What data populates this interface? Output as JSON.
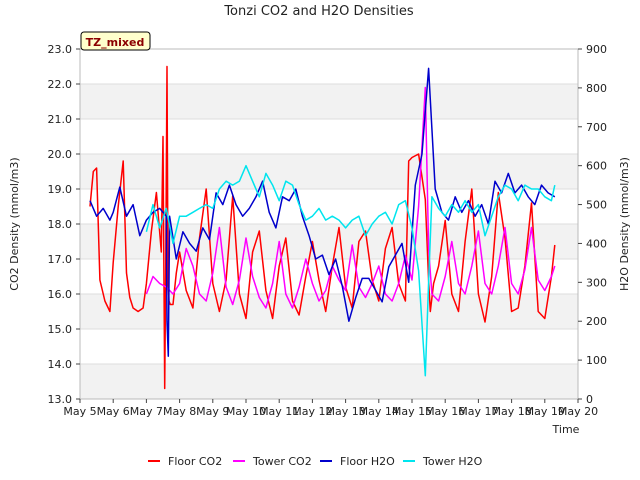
{
  "chart_data": {
    "type": "line",
    "title": "Tonzi CO2 and H2O Densities",
    "site_label": "TZ_mixed",
    "xlabel": "Time",
    "ylabel_left": "CO2 Density (mmol/m3)",
    "ylabel_right": "H2O Density (mmol/m3)",
    "x_ticks": [
      "May 5",
      "May 6",
      "May 7",
      "May 8",
      "May 9",
      "May 10",
      "May 11",
      "May 12",
      "May 13",
      "May 14",
      "May 15",
      "May 16",
      "May 17",
      "May 18",
      "May 19",
      "May 20"
    ],
    "xlim": [
      5,
      20
    ],
    "ylim_left": [
      13.0,
      23.0
    ],
    "ylim_right": [
      0,
      900
    ],
    "y_ticks_left": [
      "13.0",
      "14.0",
      "15.0",
      "16.0",
      "17.0",
      "18.0",
      "19.0",
      "20.0",
      "21.0",
      "22.0",
      "23.0"
    ],
    "y_ticks_right": [
      "0",
      "100",
      "200",
      "300",
      "400",
      "500",
      "600",
      "700",
      "800",
      "900"
    ],
    "background_bands": "alternating gray",
    "legend_position": "bottom",
    "series": [
      {
        "name": "Floor CO2",
        "axis": "left",
        "color": "#ff0000",
        "x": [
          5.3,
          5.4,
          5.5,
          5.6,
          5.75,
          5.9,
          6.0,
          6.15,
          6.3,
          6.4,
          6.5,
          6.6,
          6.75,
          6.9,
          7.0,
          7.15,
          7.3,
          7.45,
          7.5,
          7.55,
          7.58,
          7.62,
          7.65,
          7.68,
          7.72,
          7.8,
          7.9,
          8.0,
          8.2,
          8.4,
          8.6,
          8.8,
          9.0,
          9.2,
          9.4,
          9.6,
          9.8,
          10.0,
          10.2,
          10.4,
          10.6,
          10.8,
          11.0,
          11.2,
          11.4,
          11.6,
          11.8,
          12.0,
          12.2,
          12.4,
          12.6,
          12.8,
          13.0,
          13.2,
          13.4,
          13.6,
          13.8,
          14.0,
          14.2,
          14.4,
          14.6,
          14.8,
          14.9,
          15.0,
          15.2,
          15.4,
          15.5,
          15.55,
          15.65,
          15.8,
          16.0,
          16.2,
          16.4,
          16.6,
          16.8,
          17.0,
          17.2,
          17.4,
          17.6,
          17.8,
          18.0,
          18.2,
          18.4,
          18.6,
          18.8,
          19.0,
          19.2,
          19.3
        ],
        "y": [
          18.5,
          19.5,
          19.6,
          16.4,
          15.8,
          15.5,
          16.9,
          18.5,
          19.8,
          16.6,
          15.9,
          15.6,
          15.5,
          15.6,
          16.3,
          17.8,
          18.9,
          17.2,
          20.5,
          13.3,
          16.6,
          22.5,
          16.4,
          15.8,
          15.7,
          15.7,
          16.6,
          17.2,
          16.1,
          15.6,
          17.6,
          19.0,
          16.3,
          15.5,
          16.4,
          18.8,
          16.0,
          15.3,
          17.2,
          17.8,
          16.1,
          15.3,
          16.8,
          17.6,
          15.8,
          15.4,
          16.5,
          17.5,
          16.4,
          15.5,
          16.8,
          17.9,
          16.2,
          15.6,
          17.5,
          17.8,
          16.4,
          15.8,
          17.3,
          17.9,
          16.3,
          15.8,
          19.8,
          19.9,
          20.0,
          18.7,
          16.4,
          15.5,
          16.3,
          16.8,
          18.1,
          16.0,
          15.5,
          17.5,
          19.0,
          16.0,
          15.2,
          16.5,
          18.9,
          17.6,
          15.5,
          15.6,
          16.8,
          18.6,
          15.5,
          15.3,
          16.5,
          17.4
        ]
      },
      {
        "name": "Tower CO2",
        "axis": "left",
        "color": "#ff00ff",
        "x": [
          7.0,
          7.2,
          7.4,
          7.6,
          7.8,
          8.0,
          8.2,
          8.4,
          8.6,
          8.8,
          9.0,
          9.2,
          9.4,
          9.6,
          9.8,
          10.0,
          10.2,
          10.4,
          10.6,
          10.8,
          11.0,
          11.2,
          11.4,
          11.6,
          11.8,
          12.0,
          12.2,
          12.4,
          12.6,
          12.8,
          13.0,
          13.2,
          13.4,
          13.6,
          13.8,
          14.0,
          14.2,
          14.4,
          14.6,
          14.8,
          15.0,
          15.2,
          15.4,
          15.5,
          15.6,
          15.8,
          16.0,
          16.2,
          16.4,
          16.6,
          16.8,
          17.0,
          17.2,
          17.4,
          17.6,
          17.8,
          18.0,
          18.2,
          18.4,
          18.6,
          18.8,
          19.0,
          19.2,
          19.3
        ],
        "y": [
          16.0,
          16.5,
          16.3,
          16.2,
          16.0,
          16.3,
          17.3,
          16.8,
          16.0,
          15.8,
          16.6,
          17.9,
          16.2,
          15.7,
          16.4,
          17.6,
          16.5,
          15.9,
          15.6,
          16.3,
          17.5,
          16.0,
          15.6,
          16.2,
          17.0,
          16.3,
          15.8,
          16.1,
          16.8,
          16.4,
          16.1,
          17.4,
          16.2,
          15.9,
          16.3,
          16.8,
          16.0,
          15.8,
          16.3,
          17.1,
          16.4,
          18.5,
          21.9,
          17.3,
          16.0,
          15.8,
          16.5,
          17.5,
          16.3,
          16.0,
          16.8,
          17.8,
          16.3,
          16.0,
          16.8,
          17.9,
          16.3,
          16.0,
          16.7,
          17.9,
          16.4,
          16.1,
          16.5,
          16.8
        ]
      },
      {
        "name": "Floor H2O",
        "axis": "right",
        "color": "#0000cc",
        "x": [
          5.3,
          5.5,
          5.7,
          5.9,
          6.0,
          6.2,
          6.4,
          6.6,
          6.8,
          7.0,
          7.2,
          7.4,
          7.6,
          7.62,
          7.66,
          7.7,
          7.9,
          8.1,
          8.3,
          8.5,
          8.7,
          8.9,
          9.1,
          9.3,
          9.5,
          9.7,
          9.9,
          10.1,
          10.3,
          10.5,
          10.7,
          10.9,
          11.1,
          11.3,
          11.5,
          11.7,
          11.9,
          12.1,
          12.3,
          12.5,
          12.7,
          12.9,
          13.1,
          13.3,
          13.5,
          13.7,
          13.9,
          14.1,
          14.3,
          14.5,
          14.7,
          14.9,
          15.1,
          15.3,
          15.5,
          15.7,
          15.9,
          16.1,
          16.3,
          16.5,
          16.7,
          16.9,
          17.1,
          17.3,
          17.5,
          17.7,
          17.9,
          18.1,
          18.3,
          18.5,
          18.7,
          18.9,
          19.1,
          19.3
        ],
        "y": [
          510,
          470,
          490,
          460,
          480,
          545,
          470,
          500,
          420,
          460,
          480,
          490,
          470,
          200,
          110,
          470,
          360,
          430,
          400,
          380,
          440,
          410,
          530,
          500,
          550,
          500,
          470,
          490,
          520,
          560,
          480,
          440,
          520,
          510,
          540,
          470,
          420,
          360,
          370,
          320,
          360,
          290,
          200,
          260,
          310,
          310,
          280,
          250,
          340,
          370,
          400,
          300,
          550,
          630,
          850,
          540,
          480,
          460,
          520,
          480,
          510,
          470,
          500,
          450,
          560,
          530,
          580,
          530,
          550,
          520,
          500,
          550,
          530,
          520
        ]
      },
      {
        "name": "Tower H2O",
        "axis": "right",
        "color": "#00e5ee",
        "x": [
          7.0,
          7.2,
          7.4,
          7.6,
          7.8,
          8.0,
          8.2,
          8.4,
          8.6,
          8.8,
          9.0,
          9.2,
          9.4,
          9.6,
          9.8,
          10.0,
          10.2,
          10.4,
          10.6,
          10.8,
          11.0,
          11.2,
          11.4,
          11.6,
          11.8,
          12.0,
          12.2,
          12.4,
          12.6,
          12.8,
          13.0,
          13.2,
          13.4,
          13.6,
          13.8,
          14.0,
          14.2,
          14.4,
          14.6,
          14.8,
          15.0,
          15.2,
          15.4,
          15.5,
          15.6,
          15.8,
          16.0,
          16.2,
          16.4,
          16.6,
          16.8,
          17.0,
          17.2,
          17.4,
          17.6,
          17.8,
          18.0,
          18.2,
          18.4,
          18.6,
          18.8,
          19.0,
          19.2,
          19.3
        ],
        "y": [
          430,
          500,
          440,
          490,
          400,
          470,
          470,
          480,
          490,
          500,
          490,
          540,
          560,
          550,
          560,
          600,
          560,
          520,
          580,
          550,
          510,
          560,
          550,
          500,
          460,
          470,
          490,
          460,
          470,
          460,
          440,
          460,
          470,
          420,
          450,
          470,
          480,
          450,
          500,
          510,
          440,
          330,
          60,
          300,
          520,
          490,
          470,
          500,
          480,
          510,
          480,
          500,
          420,
          470,
          520,
          550,
          540,
          510,
          550,
          540,
          540,
          520,
          510,
          550
        ]
      }
    ]
  }
}
